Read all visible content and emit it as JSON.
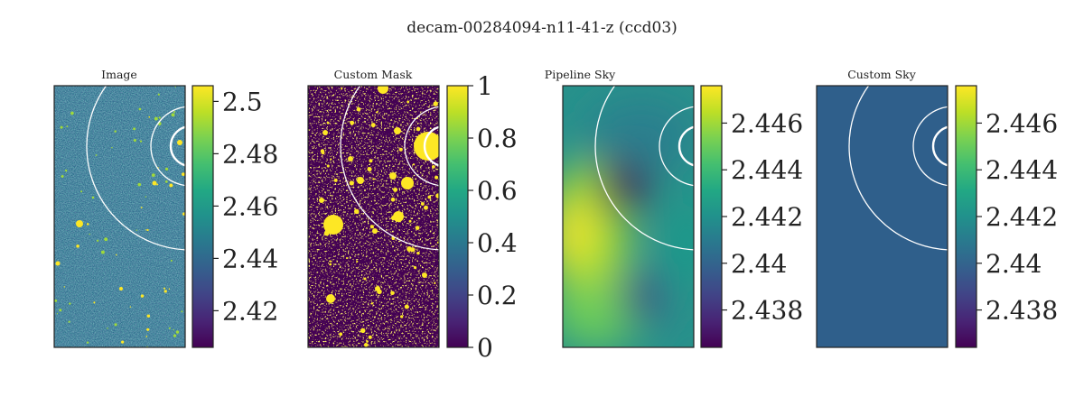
{
  "figure": {
    "title": "decam-00284094-n11-41-z (ccd03)"
  },
  "chart_data": [
    {
      "type": "heatmap",
      "title": "Image",
      "colormap": "viridis",
      "texture": "noise-with-sources",
      "colorbar": {
        "ticks": [
          "2.5",
          "2.48",
          "2.46",
          "2.44",
          "2.42"
        ],
        "tick_values": [
          2.5,
          2.48,
          2.46,
          2.44,
          2.42
        ],
        "range": [
          2.406,
          2.506
        ]
      },
      "overlay_circles": 4
    },
    {
      "type": "heatmap",
      "title": "Custom Mask",
      "colormap": "viridis",
      "texture": "binary-mask",
      "colorbar": {
        "ticks": [
          "1",
          "0.8",
          "0.6",
          "0.4",
          "0.2",
          "0"
        ],
        "tick_values": [
          1,
          0.8,
          0.6,
          0.4,
          0.2,
          0
        ],
        "range": [
          0,
          1
        ]
      },
      "overlay_circles": 4
    },
    {
      "type": "heatmap",
      "title": "Pipeline Sky",
      "colormap": "viridis",
      "texture": "smooth-background",
      "colorbar": {
        "ticks": [
          "2.446",
          "2.444",
          "2.442",
          "2.44",
          "2.438"
        ],
        "tick_values": [
          2.446,
          2.444,
          2.442,
          2.44,
          2.438
        ],
        "range": [
          2.4364,
          2.4476
        ]
      },
      "overlay_circles": 4
    },
    {
      "type": "heatmap",
      "title": "Custom Sky",
      "colormap": "viridis",
      "texture": "constant",
      "constant_value": 2.4398,
      "colorbar": {
        "ticks": [
          "2.446",
          "2.444",
          "2.442",
          "2.44",
          "2.438"
        ],
        "tick_values": [
          2.446,
          2.444,
          2.442,
          2.44,
          2.438
        ],
        "range": [
          2.4364,
          2.4476
        ]
      },
      "overlay_circles": 4
    }
  ]
}
